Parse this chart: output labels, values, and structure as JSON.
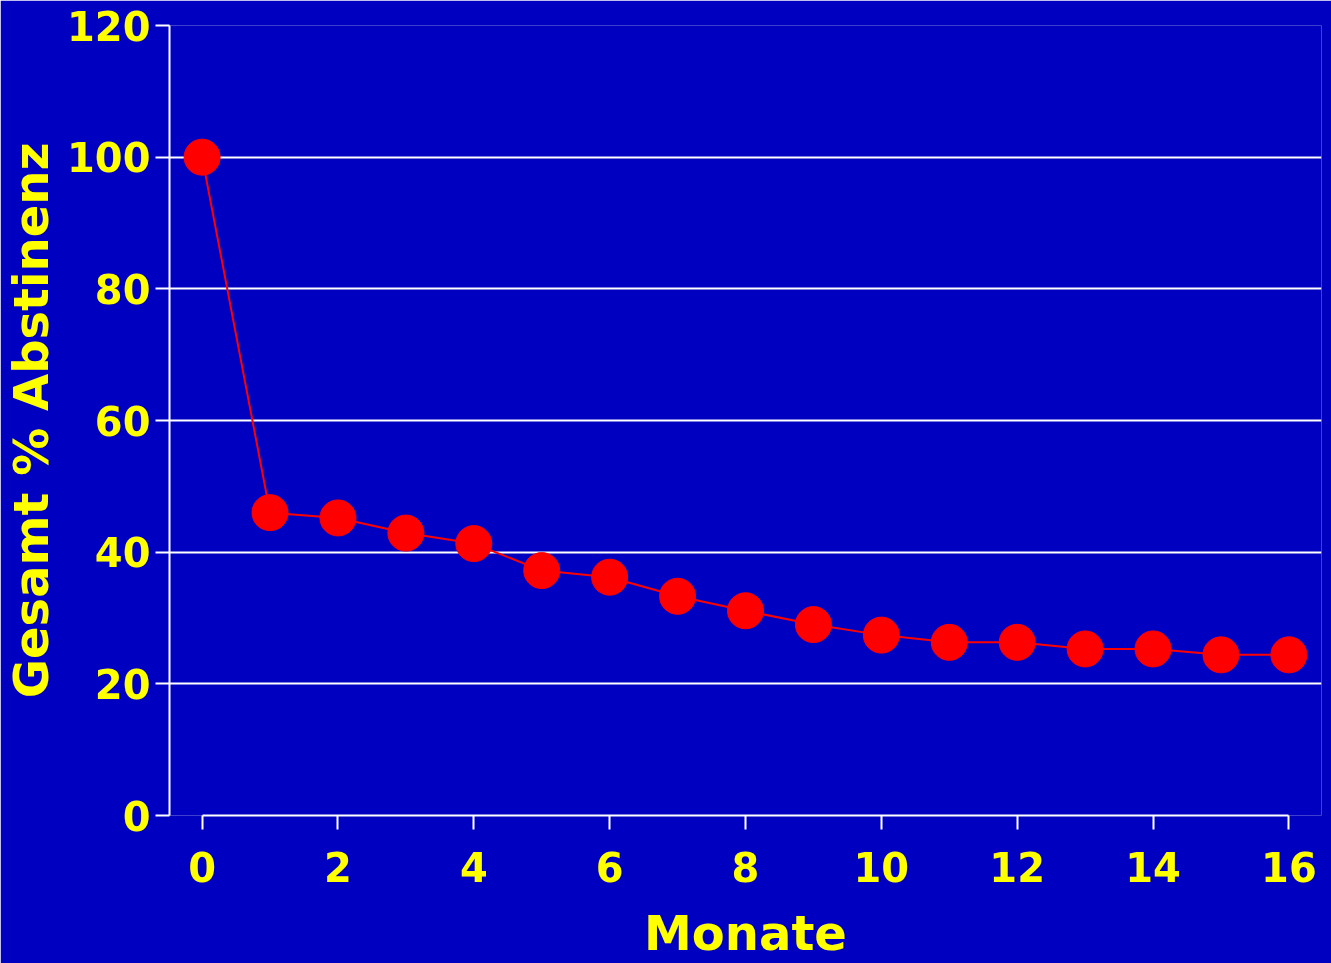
{
  "chart_data": {
    "type": "line",
    "xlabel": "Monate",
    "ylabel": "Gesamt % Abstinenz",
    "x": [
      0,
      1,
      2,
      3,
      4,
      5,
      6,
      7,
      8,
      9,
      10,
      11,
      12,
      13,
      14,
      15,
      16
    ],
    "series": [
      {
        "color": "#ff0000",
        "values": [
          100,
          46,
          45.2,
          42.9,
          41.3,
          37.2,
          36.2,
          33.3,
          31.1,
          29,
          27.4,
          26.3,
          26.3,
          25.3,
          25.3,
          24.4,
          24.4
        ]
      }
    ],
    "xlim": [
      0,
      16
    ],
    "ylim": [
      0,
      120
    ],
    "xticks": [
      0,
      2,
      4,
      6,
      8,
      10,
      12,
      14,
      16
    ],
    "yticks": [
      0,
      20,
      40,
      60,
      80,
      100,
      120
    ],
    "grid": "y",
    "marker": "circle",
    "line_style": "solid"
  }
}
